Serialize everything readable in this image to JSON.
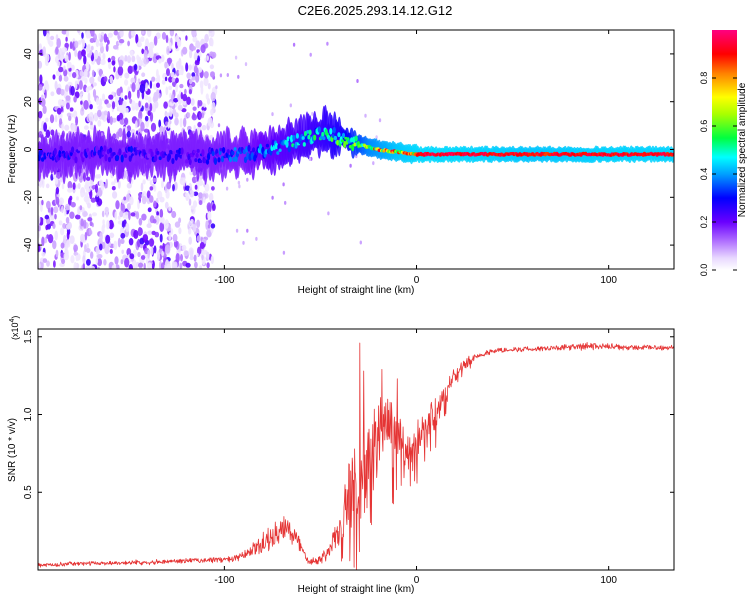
{
  "title": "C2E6.2025.293.14.12.G12",
  "chart_data": [
    {
      "type": "heatmap",
      "title": "C2E6.2025.293.14.12.G12",
      "xlabel": "Height of straight line (km)",
      "ylabel": "Frequency (Hz)",
      "xlim": [
        -197,
        134
      ],
      "ylim": [
        -50,
        50
      ],
      "xticks": [
        -100,
        0,
        100
      ],
      "xtick_labels": [
        "-100",
        "0",
        "100"
      ],
      "yticks": [
        -40,
        -20,
        0,
        20,
        40
      ],
      "ytick_labels": [
        "-40",
        "-20",
        "0",
        "20",
        "40"
      ],
      "colorbar": {
        "label": "Normalized spectral amplitude",
        "range": [
          0,
          1
        ],
        "ticks": [
          0.0,
          0.2,
          0.4,
          0.6,
          0.8
        ],
        "tick_labels": [
          "0.0",
          "0.2",
          "0.4",
          "0.6",
          "0.8"
        ]
      },
      "ridge_center_hz": {
        "x": [
          -197,
          -150,
          -110,
          -90,
          -75,
          -60,
          -50,
          -40,
          -30,
          -20,
          -10,
          0,
          20,
          50,
          90,
          134
        ],
        "y": [
          -2,
          -2,
          -3,
          -2,
          0,
          4,
          7,
          5,
          2,
          0,
          -1,
          -2,
          -2,
          -2,
          -2,
          -2
        ]
      },
      "ridge_amplitude": {
        "x": [
          -197,
          -110,
          -80,
          -50,
          -40,
          -25,
          -10,
          0,
          20,
          60,
          100,
          134
        ],
        "y": [
          0.3,
          0.3,
          0.45,
          0.55,
          0.6,
          0.85,
          0.95,
          0.98,
          0.98,
          0.95,
          0.97,
          0.97
        ]
      },
      "noise_region_x": [
        -197,
        -105
      ]
    },
    {
      "type": "line",
      "title": "",
      "xlabel": "Height of straight line (km)",
      "ylabel": "SNR (10 * v/v)",
      "yscale_label": "(x10",
      "yscale_exponent": "4",
      "xlim": [
        -197,
        134
      ],
      "ylim": [
        0,
        15500
      ],
      "xticks": [
        -100,
        0,
        100
      ],
      "xtick_labels": [
        "-100",
        "0",
        "100"
      ],
      "yticks": [
        5000,
        10000,
        15000
      ],
      "ytick_labels": [
        "0.5",
        "1.0",
        "1.5"
      ],
      "color": "#e53535",
      "series": [
        {
          "name": "SNR",
          "x": [
            -197,
            -180,
            -160,
            -140,
            -120,
            -105,
            -95,
            -90,
            -85,
            -80,
            -75,
            -72,
            -68,
            -64,
            -60,
            -56,
            -52,
            -50,
            -45,
            -40,
            -38,
            -36,
            -34,
            -32,
            -30,
            -28,
            -25,
            -22,
            -20,
            -18,
            -15,
            -12,
            -10,
            -8,
            -5,
            -3,
            0,
            3,
            6,
            10,
            15,
            20,
            25,
            30,
            40,
            50,
            60,
            70,
            80,
            90,
            100,
            110,
            120,
            134
          ],
          "y": [
            300,
            400,
            450,
            500,
            600,
            650,
            700,
            900,
            1300,
            1700,
            2100,
            2300,
            2600,
            2400,
            1400,
            600,
            600,
            700,
            1400,
            2400,
            3000,
            4000,
            5500,
            5000,
            5200,
            6000,
            7000,
            8000,
            8500,
            8800,
            9200,
            9000,
            8600,
            8000,
            7800,
            8000,
            8300,
            8800,
            9400,
            10200,
            11400,
            12500,
            13200,
            13700,
            14100,
            14200,
            14200,
            14300,
            14300,
            14400,
            14350,
            14300,
            14300,
            14300
          ],
          "noise_amp": [
            150,
            150,
            150,
            180,
            180,
            220,
            250,
            350,
            600,
            800,
            1000,
            1100,
            1100,
            1000,
            600,
            300,
            300,
            400,
            800,
            1400,
            2000,
            3000,
            3800,
            3500,
            3500,
            3500,
            3500,
            3200,
            3000,
            2800,
            2600,
            2400,
            2200,
            2000,
            1800,
            1600,
            1500,
            1400,
            1300,
            1200,
            900,
            600,
            400,
            300,
            200,
            200,
            200,
            200,
            250,
            300,
            250,
            200,
            200,
            200
          ],
          "spikes": {
            "x": [
              -29.5,
              -27.5,
              -18,
              -10
            ],
            "y": [
              14600,
              12800,
              12900,
              12300
            ]
          }
        }
      ]
    }
  ]
}
